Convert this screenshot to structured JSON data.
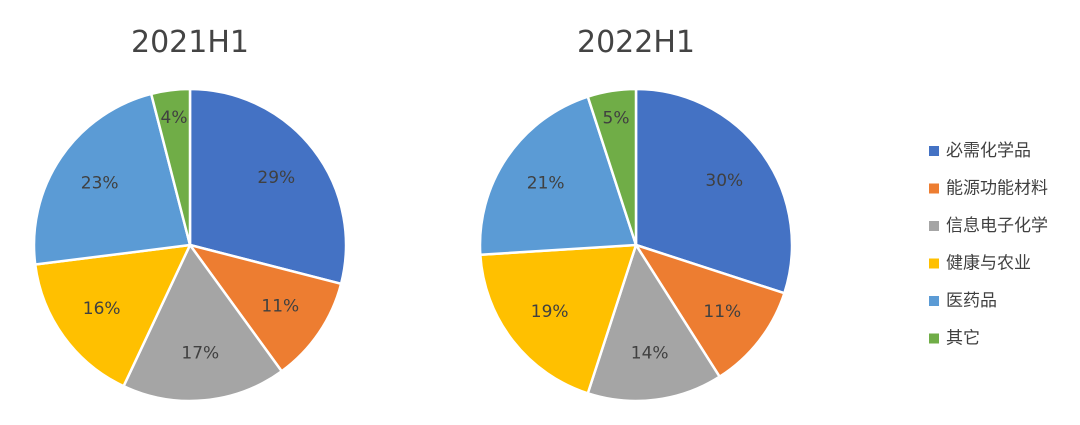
{
  "chart_data": [
    {
      "type": "pie",
      "title": "2021H1",
      "categories": [
        "必需化学品",
        "能源功能材料",
        "信息电子化学",
        "健康与农业",
        "医药品",
        "其它"
      ],
      "values": [
        29,
        11,
        17,
        16,
        23,
        4
      ],
      "labels": [
        "29%",
        "11%",
        "17%",
        "16%",
        "23%",
        "4%"
      ]
    },
    {
      "type": "pie",
      "title": "2022H1",
      "categories": [
        "必需化学品",
        "能源功能材料",
        "信息电子化学",
        "健康与农业",
        "医药品",
        "其它"
      ],
      "values": [
        30,
        11,
        14,
        19,
        21,
        5
      ],
      "labels": [
        "30%",
        "11%",
        "14%",
        "19%",
        "21%",
        "5%"
      ]
    }
  ],
  "legend": {
    "placement": "right",
    "items": [
      {
        "label": "必需化学品",
        "color": "#4472C4"
      },
      {
        "label": "能源功能材料",
        "color": "#ED7D31"
      },
      {
        "label": "信息电子化学",
        "color": "#A5A5A5"
      },
      {
        "label": "健康与农业",
        "color": "#FFC000"
      },
      {
        "label": "医药品",
        "color": "#5B9BD5"
      },
      {
        "label": "其它",
        "color": "#70AD47"
      }
    ]
  }
}
